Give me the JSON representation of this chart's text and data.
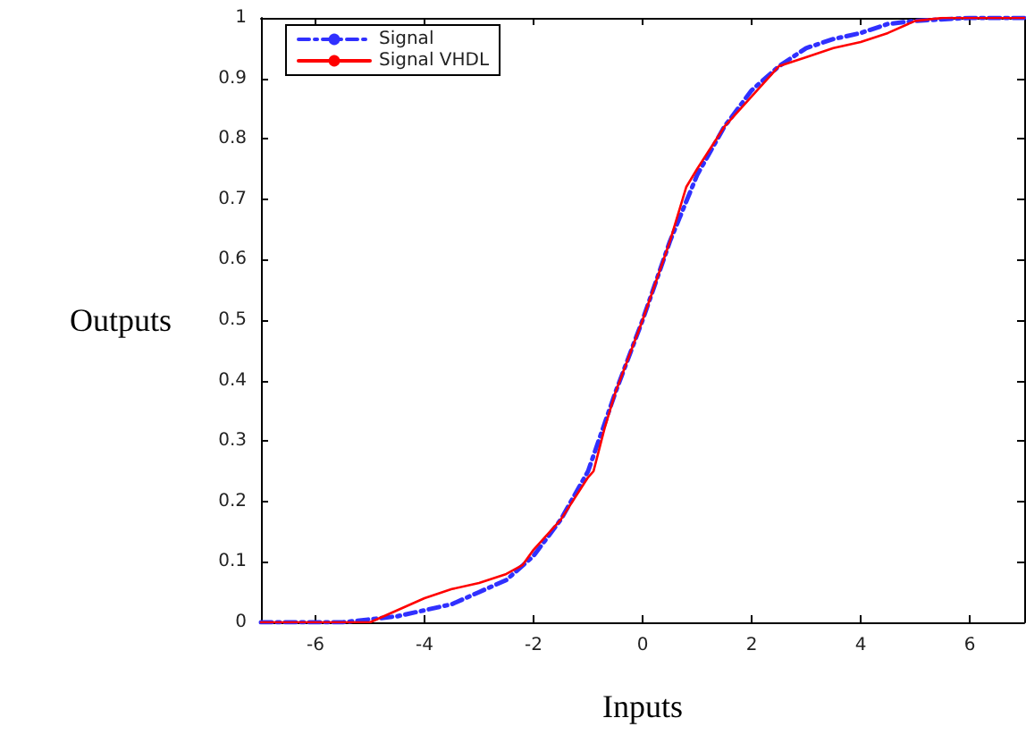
{
  "chart_data": {
    "type": "line",
    "xlabel": "Inputs",
    "ylabel": "Outputs",
    "xlim": [
      -7,
      7
    ],
    "xticks": [
      -6,
      -4,
      -2,
      0,
      2,
      4,
      6
    ],
    "ylim": [
      0,
      1
    ],
    "yticks": [
      0,
      0.1,
      0.2,
      0.3,
      0.4,
      0.5,
      0.6,
      0.7,
      0.8,
      0.9,
      1
    ],
    "grid": false,
    "legend": "top left",
    "marker": "none",
    "series": [
      {
        "name": "Signal",
        "color": "#3030ff",
        "line_style": "dashdot",
        "x": [
          -7,
          -5.5,
          -5,
          -4.5,
          -4,
          -3.5,
          -3,
          -2.5,
          -2,
          -1.5,
          -1,
          -0.5,
          0,
          0.5,
          1,
          1.5,
          2,
          2.5,
          3,
          3.5,
          4,
          4.5,
          5,
          6,
          7
        ],
        "values": [
          0,
          0,
          0.005,
          0.01,
          0.02,
          0.03,
          0.05,
          0.07,
          0.11,
          0.17,
          0.25,
          0.38,
          0.5,
          0.63,
          0.74,
          0.82,
          0.88,
          0.92,
          0.95,
          0.965,
          0.975,
          0.99,
          0.995,
          1,
          1
        ]
      },
      {
        "name": "Signal VHDL",
        "color": "#ff0000",
        "line_style": "solid",
        "x": [
          -7,
          -5,
          -4.5,
          -4,
          -3.5,
          -3,
          -2.5,
          -2.2,
          -2,
          -1.5,
          -1,
          -0.9,
          -0.7,
          -0.5,
          0,
          0.5,
          0.8,
          1,
          1.5,
          2,
          2.5,
          3,
          3.5,
          4,
          4.5,
          5,
          5.5,
          7
        ],
        "values": [
          0,
          0,
          0.02,
          0.04,
          0.055,
          0.065,
          0.08,
          0.095,
          0.12,
          0.17,
          0.24,
          0.25,
          0.32,
          0.38,
          0.5,
          0.63,
          0.72,
          0.75,
          0.82,
          0.87,
          0.92,
          0.935,
          0.95,
          0.96,
          0.975,
          0.995,
          1,
          1
        ]
      }
    ]
  }
}
